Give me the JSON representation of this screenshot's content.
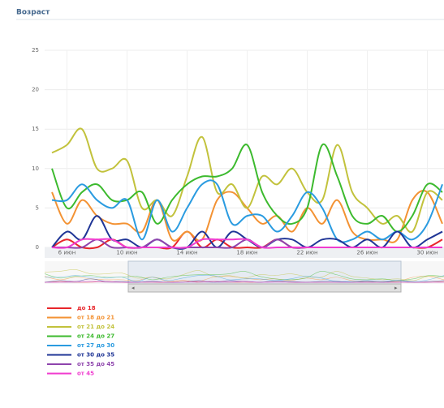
{
  "chart_data": {
    "type": "line",
    "title": "Возраст",
    "categories": [
      null,
      "6 июн",
      null,
      null,
      null,
      "10 июн",
      null,
      null,
      null,
      "14 июн",
      null,
      null,
      null,
      "18 июн",
      null,
      null,
      null,
      "22 июн",
      null,
      null,
      null,
      "26 июн",
      null,
      null,
      null,
      "30 июн",
      null
    ],
    "ylim": [
      0,
      25
    ],
    "yticks": [
      0,
      5,
      10,
      15,
      20,
      25
    ],
    "grid": true,
    "series": [
      {
        "name": "до 18",
        "color": "#e8262b",
        "values": [
          0,
          1,
          0,
          0,
          1,
          0,
          0,
          0,
          0,
          2,
          0,
          1,
          0,
          0,
          0,
          1,
          0,
          0,
          0,
          0,
          0,
          0,
          0,
          0,
          0,
          0,
          1
        ]
      },
      {
        "name": "от 18 до 21",
        "color": "#f39233",
        "values": [
          7,
          3,
          6,
          4,
          3,
          3,
          2,
          6,
          1,
          2,
          1,
          6,
          7,
          5,
          3,
          4,
          2,
          5,
          3,
          6,
          2,
          1,
          1,
          1,
          6,
          7,
          3
        ]
      },
      {
        "name": "от 21 до 24",
        "color": "#c2c23c",
        "values": [
          12,
          13,
          15,
          10,
          10,
          11,
          5,
          6,
          4,
          9,
          14,
          7,
          8,
          5,
          9,
          8,
          10,
          7,
          6,
          13,
          7,
          5,
          3,
          4,
          2,
          7,
          6
        ]
      },
      {
        "name": "от 24 до 27",
        "color": "#3cba2e",
        "values": [
          10,
          5,
          7,
          8,
          6,
          6,
          7,
          3,
          6,
          8,
          9,
          9,
          10,
          13,
          7,
          4,
          3,
          5,
          13,
          9,
          4,
          3,
          4,
          2,
          4,
          8,
          7
        ]
      },
      {
        "name": "от 27 до 30",
        "color": "#2a9be0",
        "values": [
          6,
          6,
          8,
          6,
          5,
          6,
          1,
          6,
          2,
          5,
          8,
          8,
          3,
          4,
          4,
          2,
          4,
          7,
          5,
          1,
          1,
          2,
          1,
          2,
          1,
          3,
          8
        ]
      },
      {
        "name": "от 30 до 35",
        "color": "#1f3596",
        "values": [
          0,
          2,
          1,
          4,
          1,
          1,
          0,
          1,
          0,
          0,
          2,
          0,
          2,
          1,
          0,
          1,
          1,
          0,
          1,
          1,
          0,
          1,
          0,
          2,
          0,
          1,
          2
        ]
      },
      {
        "name": "от 35 до 45",
        "color": "#8e44ad",
        "values": [
          0,
          0,
          0,
          1,
          0,
          0,
          0,
          1,
          0,
          0,
          0,
          0,
          0,
          1,
          0,
          1,
          0,
          0,
          0,
          0,
          0,
          0,
          0,
          0,
          0,
          0,
          0
        ]
      },
      {
        "name": "от 45",
        "color": "#f03ccf",
        "values": [
          0,
          0,
          1,
          1,
          1,
          0,
          0,
          0,
          0,
          0,
          1,
          1,
          1,
          1,
          0,
          0,
          0,
          0,
          0,
          0,
          0,
          0,
          0,
          0,
          0,
          0,
          0
        ]
      }
    ]
  }
}
